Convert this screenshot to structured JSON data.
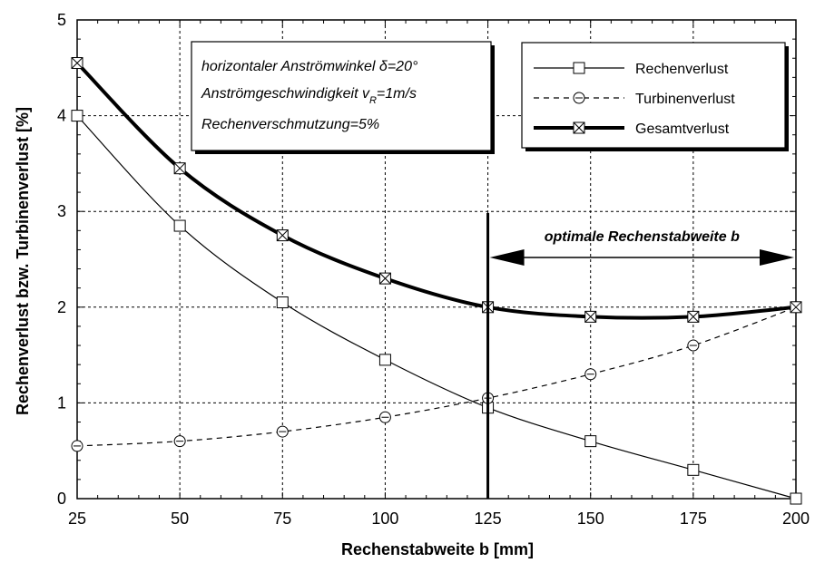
{
  "chart_data": {
    "type": "line",
    "xlabel": "Rechenstabweite b [mm]",
    "ylabel": "Rechenverlust bzw. Turbinenverlust [%]",
    "xlim": [
      25,
      200
    ],
    "ylim": [
      0,
      5
    ],
    "x_ticks": [
      25,
      50,
      75,
      100,
      125,
      150,
      175,
      200
    ],
    "y_ticks": [
      0,
      1,
      2,
      3,
      4,
      5
    ],
    "grid": true,
    "legend_position": "top-right",
    "series": [
      {
        "name": "Rechenverlust",
        "marker": "square",
        "style": "solid",
        "weight": "thin",
        "x": [
          25,
          50,
          75,
          100,
          125,
          150,
          175,
          200
        ],
        "y": [
          4.0,
          2.85,
          2.05,
          1.45,
          0.95,
          0.6,
          0.3,
          0.0
        ]
      },
      {
        "name": "Turbinenverlust",
        "marker": "circle",
        "style": "dashed",
        "weight": "thin",
        "x": [
          25,
          50,
          75,
          100,
          125,
          150,
          175,
          200
        ],
        "y": [
          0.55,
          0.6,
          0.7,
          0.85,
          1.05,
          1.3,
          1.6,
          2.0
        ]
      },
      {
        "name": "Gesamtverlust",
        "marker": "crossed-square",
        "style": "solid",
        "weight": "thick",
        "x": [
          25,
          50,
          75,
          100,
          125,
          150,
          175,
          200
        ],
        "y": [
          4.55,
          3.45,
          2.75,
          2.3,
          2.0,
          1.9,
          1.9,
          2.0
        ]
      }
    ],
    "info_box": {
      "line1": "horizontaler Anströmwinkel δ=20°",
      "line2_prefix": "Anströmgeschwindigkeit v",
      "line2_subscript": "R",
      "line2_suffix": "=1m/s",
      "line3": "Rechenverschmutzung=5%"
    },
    "annotation": {
      "text": "optimale Rechenstabweite b",
      "x_start": 125,
      "x_end": 200
    }
  }
}
